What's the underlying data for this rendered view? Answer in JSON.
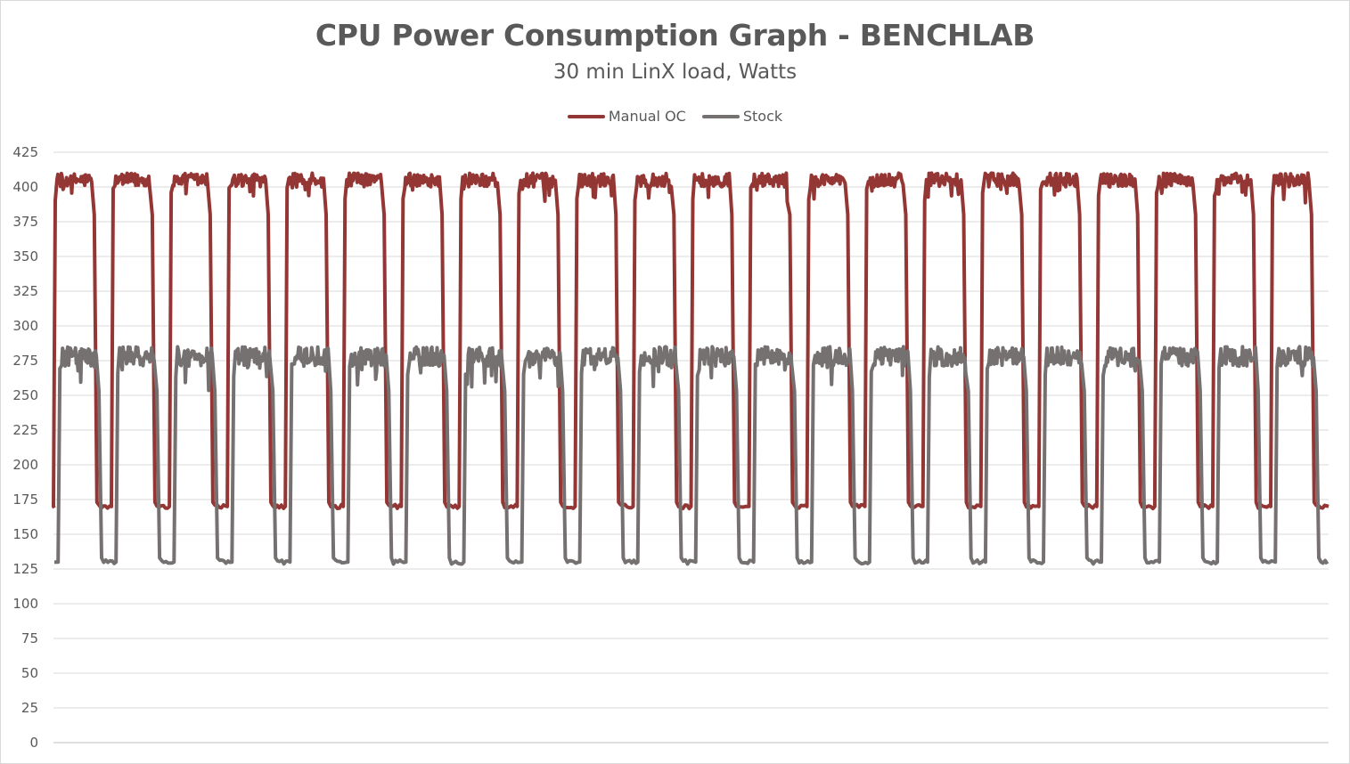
{
  "chart_data": {
    "type": "line",
    "title": "CPU Power Consumption Graph - BENCHLAB",
    "subtitle": "30 min LinX load, Watts",
    "xlabel": "",
    "ylabel": "",
    "ylim": [
      0,
      425
    ],
    "yticks": [
      "0",
      "25",
      "50",
      "75",
      "100",
      "125",
      "150",
      "175",
      "200",
      "225",
      "250",
      "275",
      "300",
      "325",
      "350",
      "375",
      "400",
      "425"
    ],
    "grid": true,
    "legend_position": "top",
    "cycles": 22,
    "series": [
      {
        "name": "Manual OC",
        "color": "#943634",
        "high": 405,
        "low": 170
      },
      {
        "name": "Stock",
        "color": "#767171",
        "high": 278,
        "low": 130
      }
    ]
  }
}
